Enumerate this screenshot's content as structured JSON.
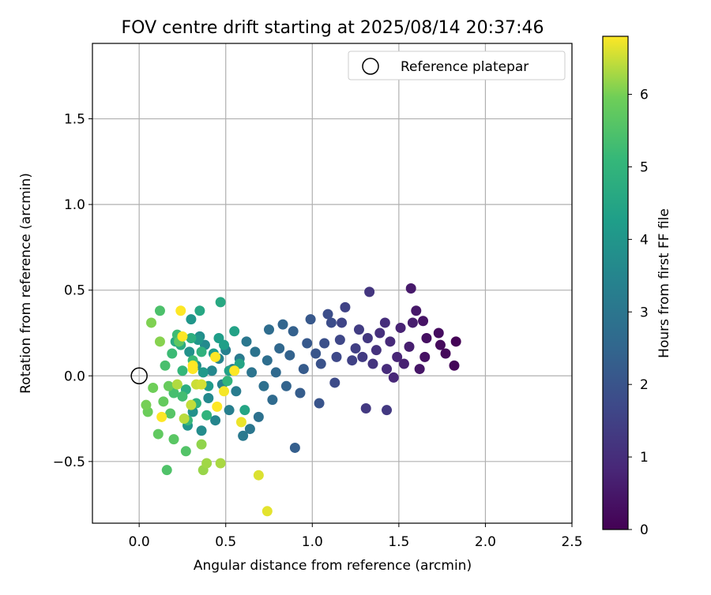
{
  "chart_data": {
    "type": "scatter",
    "title": "FOV centre drift starting at 2025/08/14 20:37:46",
    "xlabel": "Angular distance from reference (arcmin)",
    "ylabel": "Rotation from reference (arcmin)",
    "xlim": [
      -0.27,
      2.5
    ],
    "ylim": [
      -0.86,
      1.94
    ],
    "xticks": [
      0.0,
      0.5,
      1.0,
      1.5,
      2.0,
      2.5
    ],
    "xtick_labels": [
      "0.0",
      "0.5",
      "1.0",
      "1.5",
      "2.0",
      "2.5"
    ],
    "yticks": [
      -0.5,
      0.0,
      0.5,
      1.0,
      1.5
    ],
    "ytick_labels": [
      "−0.5",
      "0.0",
      "0.5",
      "1.0",
      "1.5"
    ],
    "grid": true,
    "legend": {
      "placement": "top-right",
      "entries": [
        {
          "label": "Reference platepar",
          "marker": "open-circle"
        }
      ]
    },
    "reference_point": {
      "x": 0.0,
      "y": 0.0
    },
    "colorbar": {
      "label": "Hours from first FF file",
      "colormap": "viridis",
      "range": [
        0,
        6.8
      ],
      "ticks": [
        0,
        1,
        2,
        3,
        4,
        5,
        6
      ],
      "tick_labels": [
        "0",
        "1",
        "2",
        "3",
        "4",
        "5",
        "6"
      ]
    },
    "points": [
      [
        1.83,
        0.2,
        0.05
      ],
      [
        1.82,
        0.06,
        0.1
      ],
      [
        1.77,
        0.13,
        0.15
      ],
      [
        1.74,
        0.18,
        0.2
      ],
      [
        1.73,
        0.25,
        0.25
      ],
      [
        1.66,
        0.22,
        0.3
      ],
      [
        1.65,
        0.11,
        0.35
      ],
      [
        1.64,
        0.32,
        0.4
      ],
      [
        1.62,
        0.04,
        0.45
      ],
      [
        1.6,
        0.38,
        0.5
      ],
      [
        1.57,
        0.51,
        0.55
      ],
      [
        1.58,
        0.31,
        0.6
      ],
      [
        1.56,
        0.17,
        0.65
      ],
      [
        1.53,
        0.07,
        0.7
      ],
      [
        1.51,
        0.28,
        0.75
      ],
      [
        1.49,
        0.11,
        0.8
      ],
      [
        1.47,
        -0.01,
        0.85
      ],
      [
        1.45,
        0.2,
        0.9
      ],
      [
        1.43,
        0.04,
        0.95
      ],
      [
        1.42,
        0.31,
        1.0
      ],
      [
        1.39,
        0.25,
        1.05
      ],
      [
        1.37,
        0.15,
        1.1
      ],
      [
        1.35,
        0.07,
        1.15
      ],
      [
        1.33,
        0.49,
        1.2
      ],
      [
        1.32,
        0.22,
        1.25
      ],
      [
        1.31,
        -0.19,
        1.3
      ],
      [
        1.43,
        -0.2,
        1.3
      ],
      [
        1.29,
        0.11,
        1.35
      ],
      [
        1.27,
        0.27,
        1.4
      ],
      [
        1.25,
        0.16,
        1.45
      ],
      [
        1.23,
        0.09,
        1.5
      ],
      [
        1.19,
        0.4,
        1.55
      ],
      [
        1.17,
        0.31,
        1.6
      ],
      [
        1.16,
        0.21,
        1.65
      ],
      [
        1.14,
        0.11,
        1.7
      ],
      [
        1.13,
        -0.04,
        1.75
      ],
      [
        1.11,
        0.31,
        1.8
      ],
      [
        1.09,
        0.36,
        1.85
      ],
      [
        1.07,
        0.19,
        1.9
      ],
      [
        1.05,
        0.07,
        1.95
      ],
      [
        1.04,
        -0.16,
        2.0
      ],
      [
        1.02,
        0.13,
        2.05
      ],
      [
        0.99,
        0.33,
        2.1
      ],
      [
        0.97,
        0.19,
        2.15
      ],
      [
        0.95,
        0.04,
        2.2
      ],
      [
        0.93,
        -0.1,
        2.25
      ],
      [
        0.9,
        -0.42,
        2.3
      ],
      [
        0.89,
        0.26,
        2.35
      ],
      [
        0.87,
        0.12,
        2.4
      ],
      [
        0.85,
        -0.06,
        2.45
      ],
      [
        0.83,
        0.3,
        2.5
      ],
      [
        0.81,
        0.16,
        2.55
      ],
      [
        0.79,
        0.02,
        2.6
      ],
      [
        0.77,
        -0.14,
        2.65
      ],
      [
        0.75,
        0.27,
        2.7
      ],
      [
        0.74,
        0.09,
        2.75
      ],
      [
        0.72,
        -0.06,
        2.8
      ],
      [
        0.69,
        -0.24,
        2.85
      ],
      [
        0.67,
        0.14,
        2.9
      ],
      [
        0.65,
        0.02,
        2.95
      ],
      [
        0.64,
        -0.31,
        3.0
      ],
      [
        0.62,
        0.2,
        3.05
      ],
      [
        0.6,
        -0.35,
        3.1
      ],
      [
        0.58,
        0.1,
        3.15
      ],
      [
        0.56,
        -0.09,
        3.2
      ],
      [
        0.54,
        0.04,
        3.25
      ],
      [
        0.52,
        -0.2,
        3.3
      ],
      [
        0.5,
        0.15,
        3.35
      ],
      [
        0.48,
        -0.05,
        3.4
      ],
      [
        0.46,
        0.1,
        3.45
      ],
      [
        0.44,
        -0.26,
        3.5
      ],
      [
        0.42,
        0.03,
        3.55
      ],
      [
        0.4,
        -0.13,
        3.6
      ],
      [
        0.38,
        0.18,
        3.65
      ],
      [
        0.36,
        -0.32,
        3.7
      ],
      [
        0.35,
        0.23,
        3.75
      ],
      [
        0.33,
        0.06,
        3.8
      ],
      [
        0.31,
        -0.21,
        3.85
      ],
      [
        0.29,
        0.14,
        3.9
      ],
      [
        0.28,
        -0.29,
        3.95
      ],
      [
        0.3,
        0.33,
        4.0
      ],
      [
        0.34,
        0.21,
        4.05
      ],
      [
        0.37,
        0.02,
        4.1
      ],
      [
        0.4,
        -0.06,
        4.15
      ],
      [
        0.43,
        0.13,
        4.2
      ],
      [
        0.46,
        0.22,
        4.25
      ],
      [
        0.49,
        0.18,
        4.3
      ],
      [
        0.52,
        0.03,
        4.35
      ],
      [
        0.55,
        0.26,
        4.4
      ],
      [
        0.58,
        0.07,
        4.45
      ],
      [
        0.61,
        -0.2,
        4.5
      ],
      [
        0.35,
        0.38,
        4.55
      ],
      [
        0.47,
        0.43,
        4.6
      ],
      [
        0.21,
        0.2,
        4.65
      ],
      [
        0.24,
        0.18,
        4.7
      ],
      [
        0.27,
        -0.08,
        4.75
      ],
      [
        0.3,
        0.22,
        4.8
      ],
      [
        0.33,
        -0.16,
        4.85
      ],
      [
        0.36,
        0.14,
        4.9
      ],
      [
        0.39,
        -0.23,
        4.95
      ],
      [
        0.51,
        -0.03,
        5.0
      ],
      [
        0.25,
        0.03,
        5.05
      ],
      [
        0.28,
        -0.26,
        5.1
      ],
      [
        0.31,
        0.09,
        5.15
      ],
      [
        0.19,
        0.13,
        5.2
      ],
      [
        0.22,
        0.24,
        5.25
      ],
      [
        0.25,
        -0.12,
        5.3
      ],
      [
        0.2,
        -0.1,
        5.35
      ],
      [
        0.15,
        0.06,
        5.4
      ],
      [
        0.12,
        0.38,
        5.45
      ],
      [
        0.16,
        -0.55,
        5.5
      ],
      [
        0.27,
        -0.44,
        5.55
      ],
      [
        0.18,
        -0.22,
        5.6
      ],
      [
        0.2,
        -0.37,
        5.65
      ],
      [
        0.23,
        0.2,
        5.7
      ],
      [
        0.11,
        -0.34,
        5.75
      ],
      [
        0.14,
        -0.15,
        5.8
      ],
      [
        0.17,
        -0.06,
        5.85
      ],
      [
        0.05,
        -0.21,
        5.9
      ],
      [
        0.08,
        -0.07,
        5.95
      ],
      [
        0.04,
        -0.17,
        6.0
      ],
      [
        0.07,
        0.31,
        6.05
      ],
      [
        0.12,
        0.2,
        6.1
      ],
      [
        0.36,
        -0.4,
        6.15
      ],
      [
        0.37,
        -0.55,
        6.2
      ],
      [
        0.39,
        -0.51,
        6.25
      ],
      [
        0.47,
        -0.51,
        6.3
      ],
      [
        0.22,
        -0.05,
        6.35
      ],
      [
        0.26,
        -0.25,
        6.4
      ],
      [
        0.3,
        -0.17,
        6.45
      ],
      [
        0.33,
        -0.05,
        6.5
      ],
      [
        0.36,
        -0.05,
        6.55
      ],
      [
        0.69,
        -0.58,
        6.6
      ],
      [
        0.74,
        -0.79,
        6.65
      ],
      [
        0.59,
        -0.27,
        6.7
      ],
      [
        0.49,
        -0.09,
        6.75
      ],
      [
        0.55,
        0.03,
        6.8
      ],
      [
        0.44,
        0.11,
        6.85
      ],
      [
        0.31,
        0.04,
        6.9
      ],
      [
        0.24,
        0.38,
        6.95
      ],
      [
        0.13,
        -0.24,
        7.0
      ],
      [
        0.31,
        0.06,
        7.05
      ],
      [
        0.25,
        0.23,
        7.1
      ],
      [
        0.45,
        -0.18,
        7.15
      ]
    ]
  }
}
